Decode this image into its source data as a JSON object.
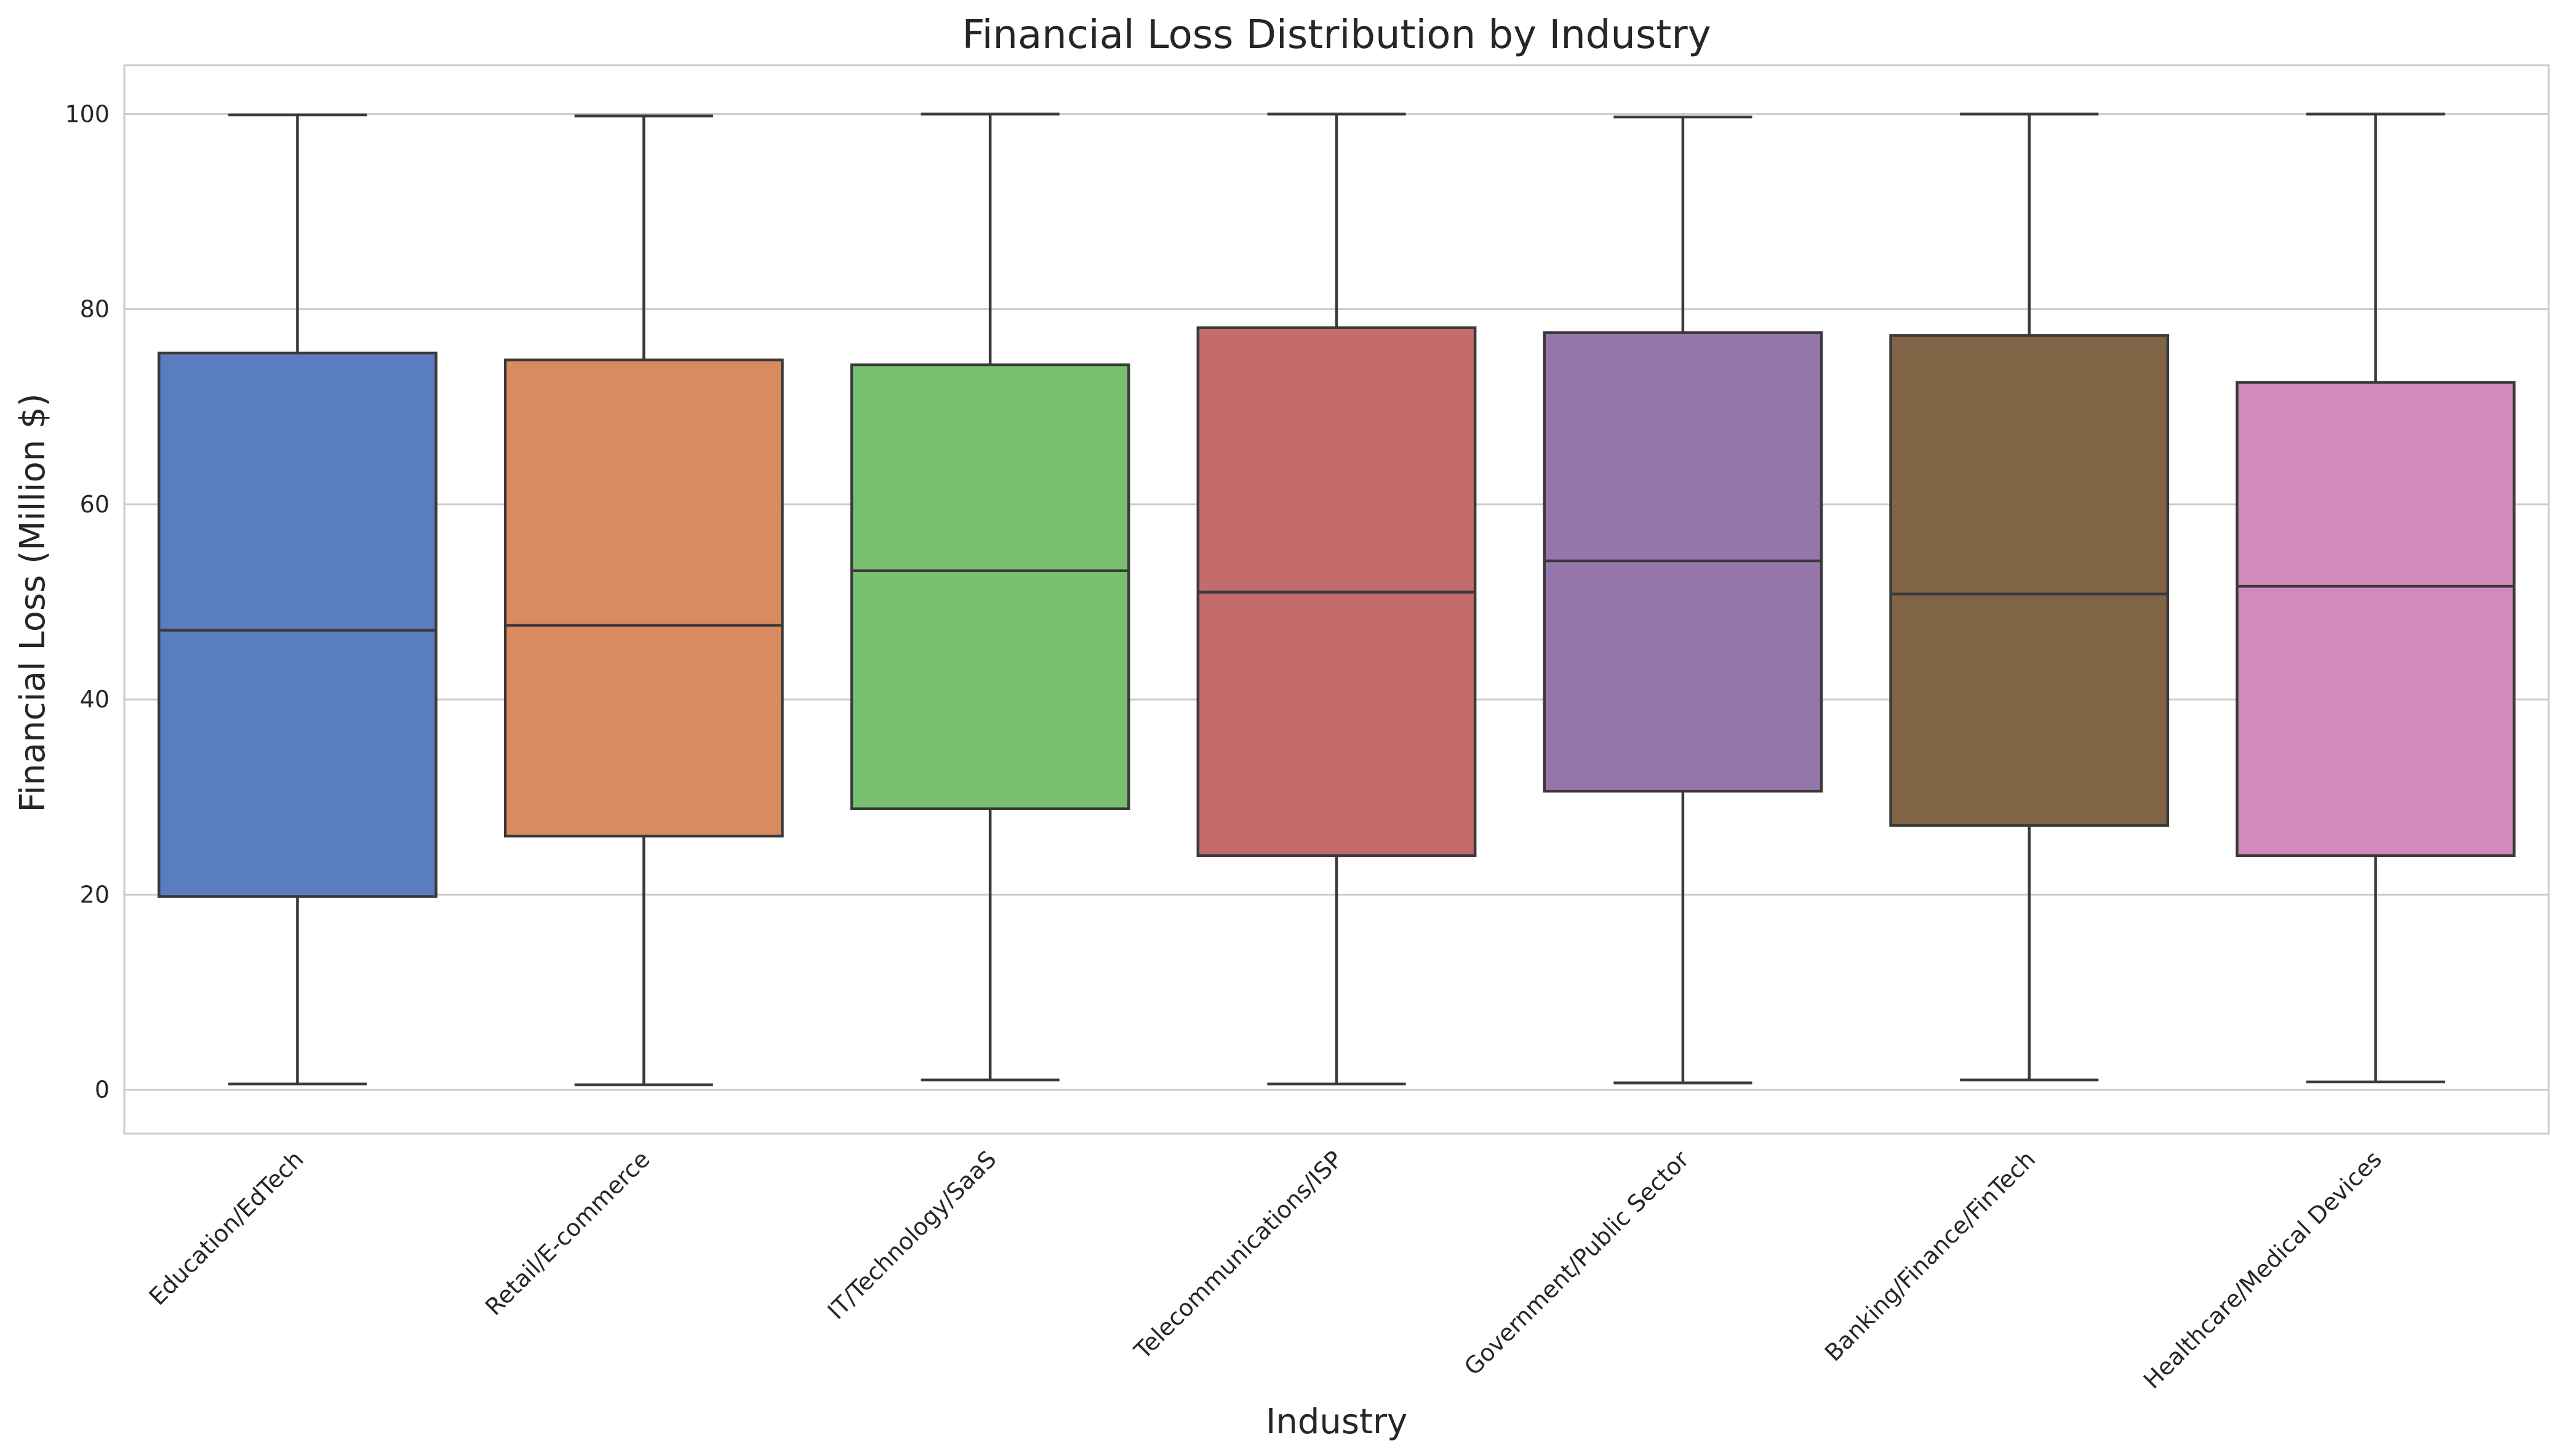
{
  "chart_data": {
    "type": "box",
    "title": "Financial Loss Distribution by Industry",
    "xlabel": "Industry",
    "ylabel": "Financial Loss (Million $)",
    "ylim": [
      -4.5,
      105
    ],
    "yticks": [
      0,
      20,
      40,
      60,
      80,
      100
    ],
    "grid": "horizontal",
    "categories": [
      "Education/EdTech",
      "Retail/E-commerce",
      "IT/Technology/SaaS",
      "Telecommunications/ISP",
      "Government/Public Sector",
      "Banking/Finance/FinTech",
      "Healthcare/Medical Devices"
    ],
    "series": [
      {
        "category": "Education/EdTech",
        "min": 0.6,
        "q1": 19.8,
        "median": 47.1,
        "q3": 75.5,
        "max": 99.9,
        "color": "#5a7dbf"
      },
      {
        "category": "Retail/E-commerce",
        "min": 0.5,
        "q1": 26.0,
        "median": 47.6,
        "q3": 74.8,
        "max": 99.8,
        "color": "#d98a5f"
      },
      {
        "category": "IT/Technology/SaaS",
        "min": 1.0,
        "q1": 28.8,
        "median": 53.2,
        "q3": 74.3,
        "max": 100.0,
        "color": "#78c070"
      },
      {
        "category": "Telecommunications/ISP",
        "min": 0.6,
        "q1": 24.0,
        "median": 51.0,
        "q3": 78.1,
        "max": 100.0,
        "color": "#c46c6b"
      },
      {
        "category": "Government/Public Sector",
        "min": 0.7,
        "q1": 30.6,
        "median": 54.2,
        "q3": 77.6,
        "max": 99.7,
        "color": "#9476ac"
      },
      {
        "category": "Banking/Finance/FinTech",
        "min": 1.0,
        "q1": 27.1,
        "median": 50.8,
        "q3": 77.3,
        "max": 100.0,
        "color": "#816346"
      },
      {
        "category": "Healthcare/Medical Devices",
        "min": 0.8,
        "q1": 24.0,
        "median": 51.6,
        "q3": 72.5,
        "max": 100.0,
        "color": "#d08abc"
      }
    ]
  }
}
